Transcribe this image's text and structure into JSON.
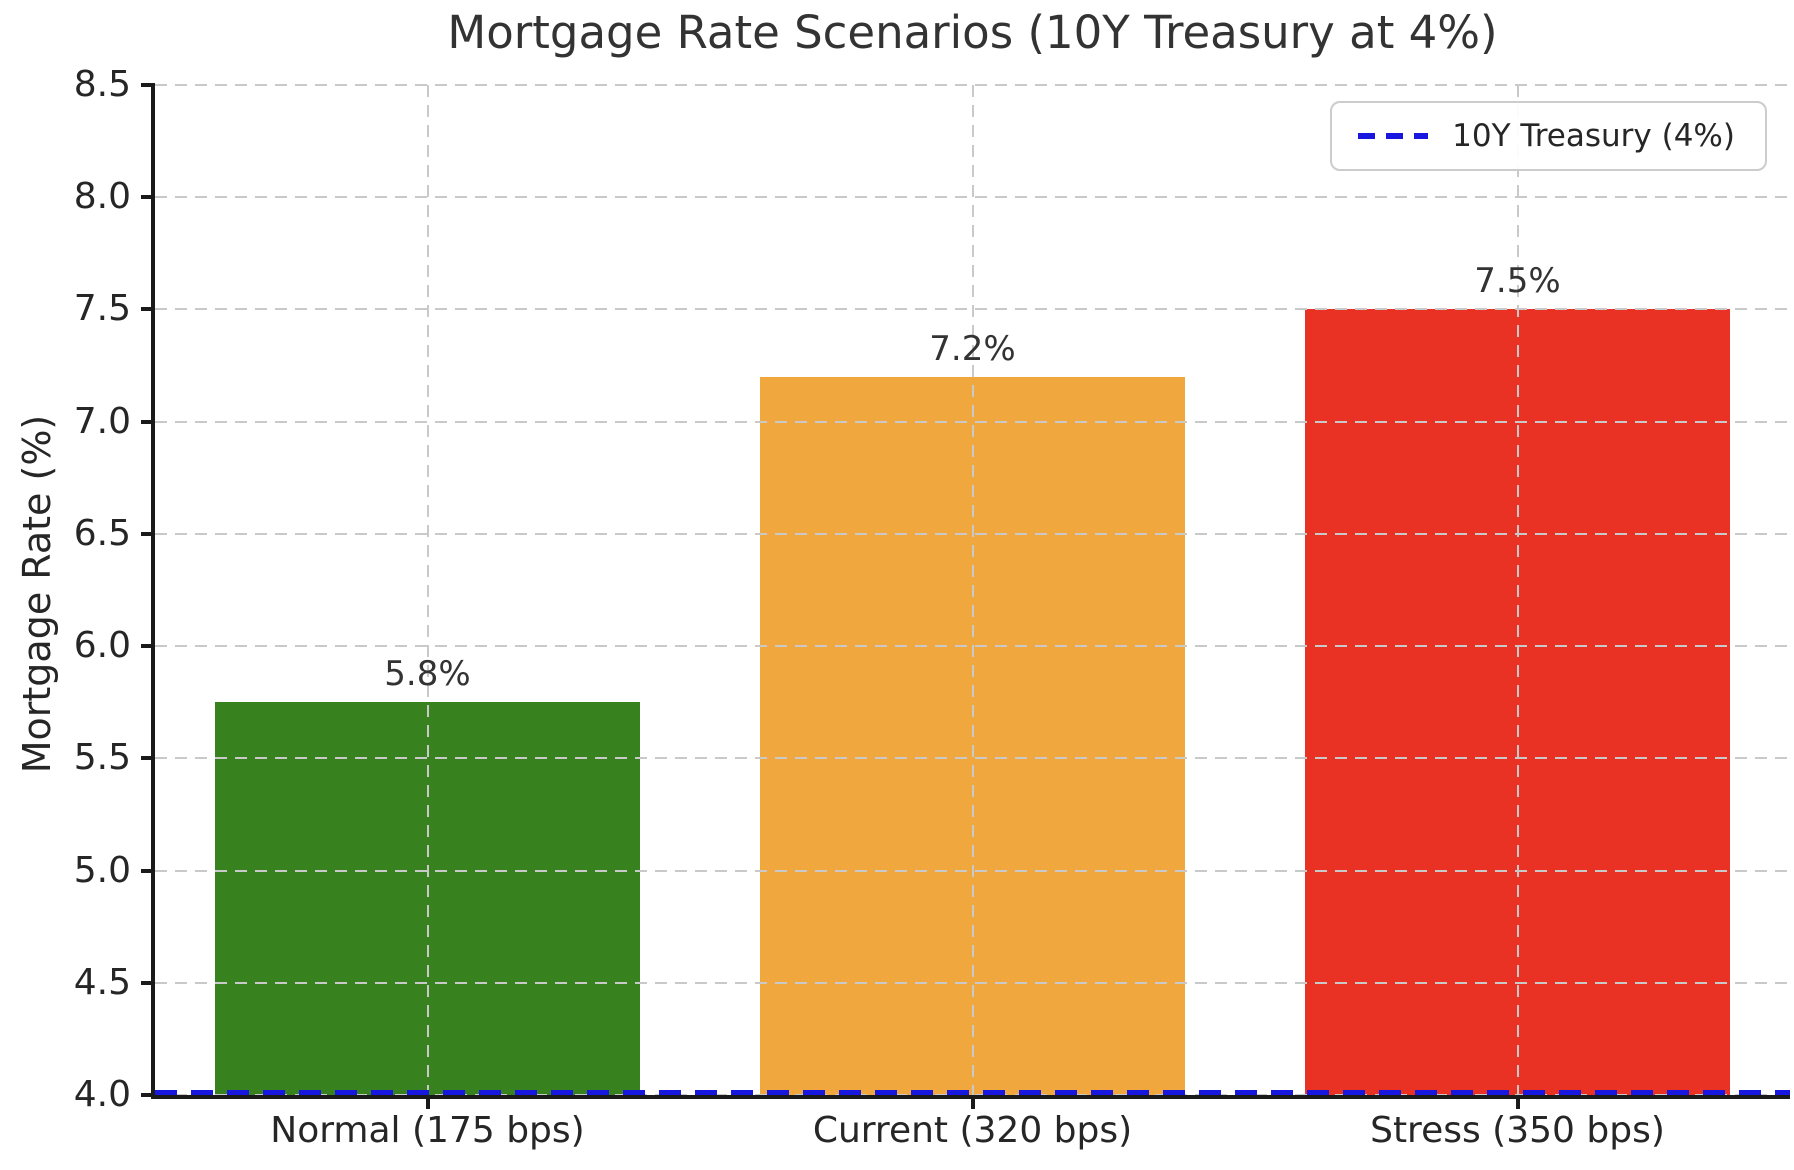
{
  "title": "Mortgage Rate Scenarios (10Y Treasury at 4%)",
  "y_axis_label": "Mortgage Rate (%)",
  "legend": {
    "label": "10Y Treasury (4%)"
  },
  "chart_data": {
    "type": "bar",
    "title": "Mortgage Rate Scenarios (10Y Treasury at 4%)",
    "xlabel": "",
    "ylabel": "Mortgage Rate (%)",
    "categories": [
      "Normal (175 bps)",
      "Current (320 bps)",
      "Stress (350 bps)"
    ],
    "values": [
      5.75,
      7.2,
      7.5
    ],
    "bar_value_labels": [
      "5.8%",
      "7.2%",
      "7.5%"
    ],
    "bar_colors": [
      "#37811f",
      "#f0a73d",
      "#e93223"
    ],
    "ylim": [
      4.0,
      8.5
    ],
    "yticks": [
      4.0,
      4.5,
      5.0,
      5.5,
      6.0,
      6.5,
      7.0,
      7.5,
      8.0,
      8.5
    ],
    "ytick_labels": [
      "4.0",
      "4.5",
      "5.0",
      "5.5",
      "6.0",
      "6.5",
      "7.0",
      "7.5",
      "8.0",
      "8.5"
    ],
    "grid": true,
    "grid_style": "dashed",
    "grid_above_bars": true,
    "reference_line": {
      "value": 4.0,
      "label": "10Y Treasury (4%)",
      "color": "#1717e0",
      "style": "dashed"
    },
    "legend_position": "upper right",
    "bar_width_fraction": 0.78
  }
}
